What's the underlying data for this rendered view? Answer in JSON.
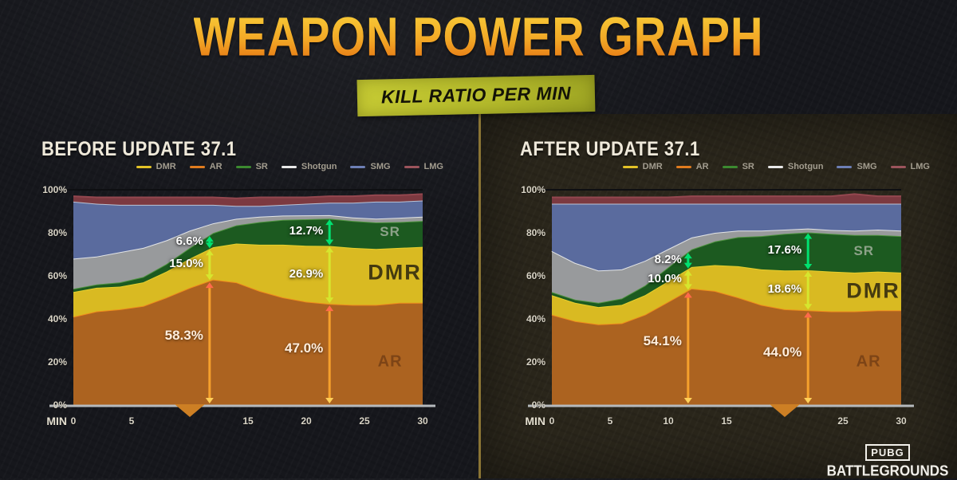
{
  "title": "WEAPON POWER GRAPH",
  "subtitle_badge": "KILL RATIO PER MIN",
  "logo": {
    "top": "PUBG",
    "bottom": "BATTLEGROUNDS"
  },
  "colors": {
    "badge_bg": "#b9bf2f",
    "panel_divider": "#8a7434",
    "axis_text": "#d9d4c6",
    "gridline_100": "#0e0f12",
    "axis_line": "#b6babd",
    "marker_triangle": "#cd7f24",
    "sr_arrow": "#00e170",
    "dmr_arrow": "#d6e62e",
    "ar_arrow_shaft": "#f5a02c",
    "ar_arrow_head_top": "#ff6a4a",
    "ar_arrow_head_bottom": "#ffd05a",
    "band_label_sr": "#8da289",
    "band_label_dmr": "#443a10",
    "band_label_ar": "#7d4416"
  },
  "legend": [
    {
      "label": "DMR",
      "color": "#e3c227"
    },
    {
      "label": "AR",
      "color": "#e07b1e"
    },
    {
      "label": "SR",
      "color": "#3c8a30"
    },
    {
      "label": "Shotgun",
      "color": "#e8e8e8"
    },
    {
      "label": "SMG",
      "color": "#6d7fb5"
    },
    {
      "label": "LMG",
      "color": "#9c545c"
    }
  ],
  "chart_data": [
    {
      "type": "area",
      "title": "BEFORE UPDATE 37.1",
      "x_label": "MIN",
      "xlim": [
        0,
        30
      ],
      "ylim": [
        0,
        100
      ],
      "y_ticks": [
        "0%",
        "20%",
        "40%",
        "60%",
        "80%",
        "100%"
      ],
      "x_ticks": [
        {
          "label": "0",
          "min": 0
        },
        {
          "label": "5",
          "min": 5
        },
        {
          "label": "15",
          "min": 15
        },
        {
          "label": "20",
          "min": 20
        },
        {
          "label": "25",
          "min": 25
        },
        {
          "label": "30",
          "min": 30
        }
      ],
      "x": [
        0,
        2,
        4,
        6,
        8,
        10,
        12,
        14,
        16,
        18,
        20,
        22,
        24,
        26,
        28,
        30
      ],
      "series": [
        {
          "name": "AR",
          "color": "#ac6320",
          "stroke": "#ef8b1c",
          "values": [
            41,
            43.5,
            44.5,
            46,
            50,
            54.5,
            58.3,
            57,
            53,
            50,
            48,
            47,
            46.5,
            46.5,
            47.5,
            47.5
          ]
        },
        {
          "name": "DMR",
          "color": "#d9ba22",
          "stroke": "#e6cf2e",
          "values": [
            11.5,
            11,
            10.5,
            11,
            12,
            13.5,
            15,
            18,
            21.5,
            24.5,
            26,
            26.9,
            26.5,
            26,
            25.5,
            26
          ]
        },
        {
          "name": "SR",
          "color": "#1c5a20",
          "stroke": "#4f9440",
          "values": [
            1.5,
            1.5,
            2,
            2.5,
            3.5,
            5,
            6.6,
            8.5,
            10.5,
            11.5,
            12.3,
            12.7,
            12.5,
            12.3,
            12,
            12
          ]
        },
        {
          "name": "Shotgun",
          "color": "#989a9c",
          "stroke": "#e2e4e6",
          "values": [
            14,
            13,
            14,
            13.5,
            11,
            8,
            4.5,
            3,
            2.5,
            2,
            1.8,
            1.6,
            1.6,
            1.8,
            2,
            2
          ]
        },
        {
          "name": "SMG",
          "color": "#5a6b9e",
          "stroke": "#b9c2d4",
          "values": [
            26.5,
            24.5,
            22,
            20,
            16.5,
            12,
            8.6,
            6,
            5,
            5,
            5.4,
            5.8,
            6.9,
            7.9,
            7.5,
            7.5
          ]
        },
        {
          "name": "LMG",
          "color": "#7c3940",
          "stroke": "#93474f",
          "values": [
            2.5,
            3,
            3.5,
            3.5,
            3.5,
            3.5,
            3.5,
            3.5,
            4,
            3.5,
            3,
            3,
            3,
            3,
            3,
            3
          ]
        }
      ],
      "annotations": {
        "columns": [
          {
            "min": 11.7,
            "sr": "6.6%",
            "dmr": "15.0%",
            "ar": "58.3%"
          },
          {
            "min": 22,
            "sr": "12.7%",
            "dmr": "26.9%",
            "ar": "47.0%"
          }
        ],
        "band_labels": [
          {
            "text": "SR",
            "min": 27.2,
            "pct": 80.5,
            "cls": "sr"
          },
          {
            "text": "DMR",
            "min": 27.6,
            "pct": 61.5,
            "cls": "dmr"
          },
          {
            "text": "AR",
            "min": 27.2,
            "pct": 20,
            "cls": "ar"
          }
        ],
        "marker_min": 10
      }
    },
    {
      "type": "area",
      "title": "AFTER UPDATE 37.1",
      "x_label": "MIN",
      "xlim": [
        0,
        30
      ],
      "ylim": [
        0,
        100
      ],
      "y_ticks": [
        "0%",
        "20%",
        "40%",
        "60%",
        "80%",
        "100%"
      ],
      "x_ticks": [
        {
          "label": "0",
          "min": 0
        },
        {
          "label": "5",
          "min": 5
        },
        {
          "label": "10",
          "min": 10
        },
        {
          "label": "15",
          "min": 15
        },
        {
          "label": "25",
          "min": 25
        },
        {
          "label": "30",
          "min": 30
        }
      ],
      "x": [
        0,
        2,
        4,
        6,
        8,
        10,
        12,
        14,
        16,
        18,
        20,
        22,
        24,
        26,
        28,
        30
      ],
      "series": [
        {
          "name": "AR",
          "color": "#ac6320",
          "stroke": "#ef8b1c",
          "values": [
            42,
            39,
            37.5,
            38,
            42,
            48,
            54.1,
            53,
            50,
            46.5,
            44.5,
            44,
            43.5,
            43.5,
            44,
            44
          ]
        },
        {
          "name": "DMR",
          "color": "#d9ba22",
          "stroke": "#e6cf2e",
          "values": [
            9,
            8.5,
            8,
            8.5,
            9,
            9.5,
            10,
            12,
            14.5,
            16.5,
            18,
            18.6,
            18.5,
            18,
            18,
            17.5
          ]
        },
        {
          "name": "SR",
          "color": "#1c5a20",
          "stroke": "#4f9440",
          "values": [
            1.5,
            1.5,
            2,
            3,
            4.5,
            6.5,
            8.2,
            11,
            13.5,
            15.5,
            17,
            17.6,
            17.5,
            17.5,
            17,
            17
          ]
        },
        {
          "name": "Shotgun",
          "color": "#989a9c",
          "stroke": "#e2e4e6",
          "values": [
            19,
            17,
            15,
            13.5,
            11.5,
            8.5,
            5.5,
            4,
            3,
            2.5,
            2,
            1.8,
            1.8,
            2,
            2.5,
            2.5
          ]
        },
        {
          "name": "SMG",
          "color": "#5a6b9e",
          "stroke": "#b9c2d4",
          "values": [
            22,
            27.5,
            31,
            30.5,
            26.5,
            21,
            15.7,
            13.5,
            12.5,
            12.5,
            12,
            11.5,
            12.2,
            12.5,
            12,
            12.5
          ]
        },
        {
          "name": "LMG",
          "color": "#7c3940",
          "stroke": "#93474f",
          "values": [
            3,
            3,
            3,
            3,
            3,
            3,
            3.5,
            3.5,
            3.5,
            3.5,
            3.5,
            3.5,
            3.5,
            4.5,
            3.5,
            3.5
          ]
        }
      ],
      "annotations": {
        "columns": [
          {
            "min": 11.7,
            "sr": "8.2%",
            "dmr": "10.0%",
            "ar": "54.1%"
          },
          {
            "min": 22,
            "sr": "17.6%",
            "dmr": "18.6%",
            "ar": "44.0%"
          }
        ],
        "band_labels": [
          {
            "text": "SR",
            "min": 26.8,
            "pct": 71.5,
            "cls": "sr"
          },
          {
            "text": "DMR",
            "min": 27.6,
            "pct": 53,
            "cls": "dmr"
          },
          {
            "text": "AR",
            "min": 27.2,
            "pct": 20,
            "cls": "ar"
          }
        ],
        "marker_min": 20
      }
    }
  ]
}
